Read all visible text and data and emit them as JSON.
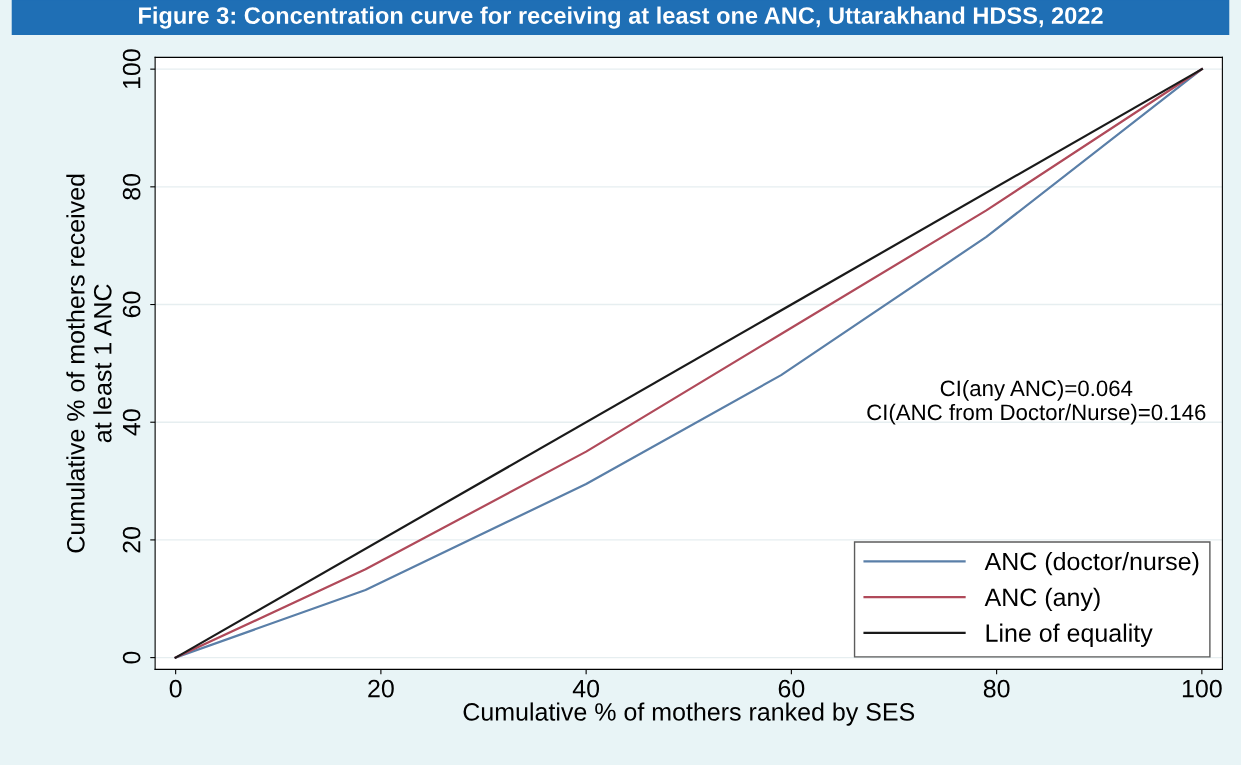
{
  "chart_data": {
    "type": "line",
    "title": "Figure 3: Concentration curve for receiving at least one ANC, Uttarakhand HDSS, 2022",
    "xlabel": "Cumulative % of mothers ranked by SES",
    "ylabel": "Cumulative % of mothers received\nat least 1 ANC",
    "series": [
      {
        "name": "ANC (doctor/nurse)",
        "color": "#5a7fa8",
        "x": [
          0,
          18.5,
          40,
          59,
          79,
          100
        ],
        "values": [
          0,
          11.5,
          29.5,
          48,
          71.5,
          100
        ]
      },
      {
        "name": "ANC (any)",
        "color": "#b04a5a",
        "x": [
          0,
          18.5,
          40,
          59,
          79,
          100
        ],
        "values": [
          0,
          15,
          35,
          55,
          76,
          100
        ]
      },
      {
        "name": "Line of equality",
        "color": "#1a1a1a",
        "x": [
          0,
          100
        ],
        "values": [
          0,
          100
        ]
      }
    ],
    "xlim": [
      -2,
      102
    ],
    "ylim": [
      -2,
      102
    ],
    "xticks": [
      0,
      20,
      40,
      60,
      80,
      100
    ],
    "yticks": [
      0,
      20,
      40,
      60,
      80,
      100
    ],
    "annotations": [
      "CI(any ANC)=0.064\nCI(ANC from Doctor/Nurse)=0.146"
    ],
    "grid": "y",
    "legend": "bottom right",
    "marker": "none",
    "line_style": "solid"
  }
}
